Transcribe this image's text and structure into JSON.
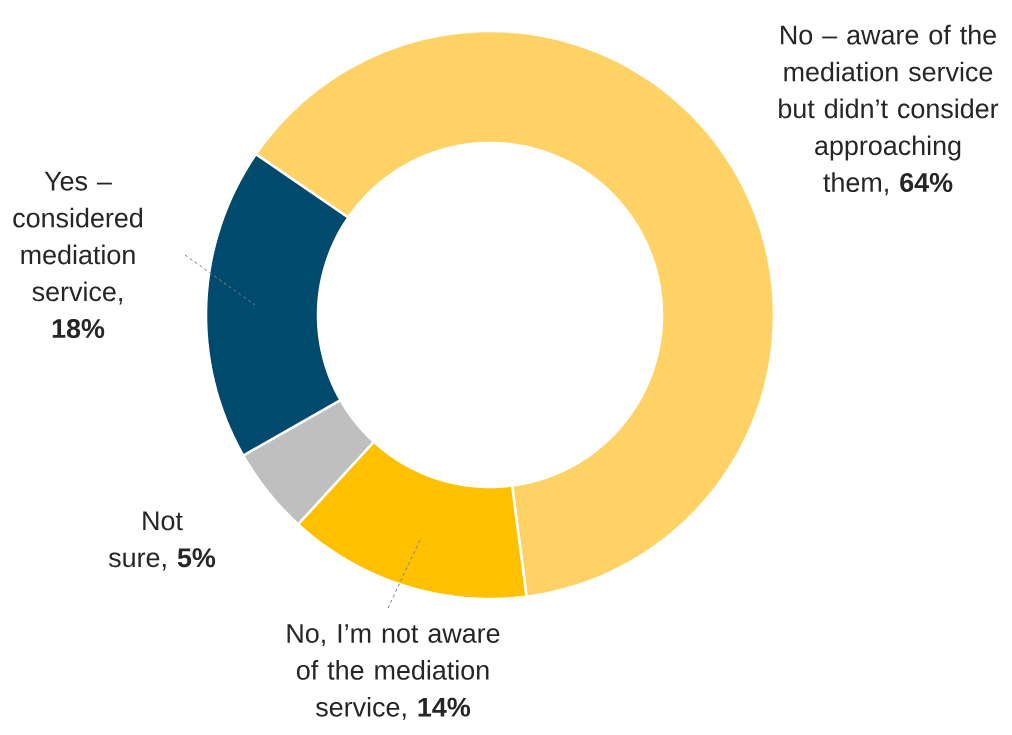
{
  "chart_data": {
    "type": "donut",
    "categories": [
      "No – aware of the mediation service but didn’t consider approaching them",
      "No, I’m not aware of the mediation service",
      "Not sure",
      "Yes – considered mediation service"
    ],
    "values": [
      64,
      14,
      5,
      18
    ],
    "value_labels": [
      ", **64%**",
      ", **14%**",
      ", **5%**",
      ", **18%**"
    ],
    "colors": [
      "#ffd265",
      "#ffc000",
      "#bfbfbf",
      "#004a6e"
    ]
  }
}
